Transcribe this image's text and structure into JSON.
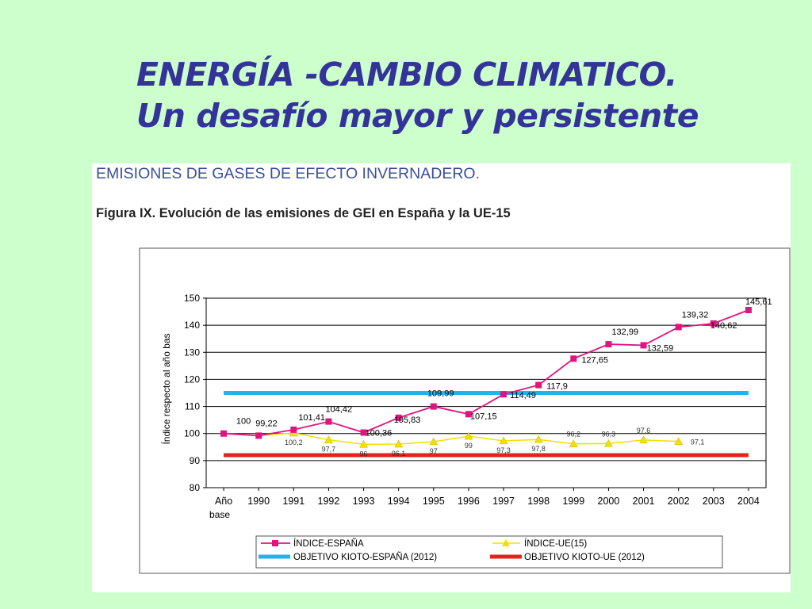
{
  "slide": {
    "title_line1": "ENERGÍA -CAMBIO CLIMATICO.",
    "title_line2": "Un desafío mayor y persistente"
  },
  "figure": {
    "heading": "EMISIONES DE GASES DE EFECTO INVERNADERO.",
    "caption": "Figura IX. Evolución de las emisiones de GEI en España y la UE-15"
  },
  "chart_data": {
    "type": "line",
    "title": "",
    "ylabel": "Índice respecto al año bas",
    "xlabel": "",
    "ylim": [
      80,
      150
    ],
    "yticks": [
      80,
      90,
      100,
      110,
      120,
      130,
      140,
      150
    ],
    "grid": true,
    "legend_position": "bottom",
    "categories": [
      [
        "Año",
        "base"
      ],
      "1990",
      "1991",
      "1992",
      "1993",
      "1994",
      "1995",
      "1996",
      "1997",
      "1998",
      "1999",
      "2000",
      "2001",
      "2002",
      "2003",
      "2004"
    ],
    "series": [
      {
        "name": "ÍNDICE-ESPAÑA",
        "color": "#e0147f",
        "marker": "square",
        "values": [
          100,
          99.22,
          101.41,
          104.42,
          100.36,
          105.83,
          109.99,
          107.15,
          114.49,
          117.9,
          127.65,
          132.99,
          132.59,
          139.32,
          140.62,
          145.61
        ],
        "labels": [
          "100",
          "99,22",
          "101,41",
          "104,42",
          "100,36",
          "105,83",
          "109,99",
          "107,15",
          "114,49",
          "117,9",
          "127,65",
          "132,99",
          "132,59",
          "139,32",
          "140,62",
          "145,61"
        ]
      },
      {
        "name": "ÍNDICE-UE(15)",
        "color": "#f2e000",
        "marker": "triangle",
        "values": [
          null,
          99.22,
          100.2,
          97.7,
          96,
          96.1,
          97,
          99,
          97.3,
          97.8,
          96.2,
          96.3,
          97.6,
          97.1,
          null,
          null
        ],
        "labels": [
          "",
          "",
          "100,2",
          "97,7",
          "96",
          "96,1",
          "97",
          "99",
          "97,3",
          "97,8",
          "96,2",
          "96,3",
          "97,6",
          "97,1",
          "",
          ""
        ]
      },
      {
        "name": "OBJETIVO KIOTO-ESPAÑA (2012)",
        "color": "#1eb6e8",
        "constant": 115
      },
      {
        "name": "OBJETIVO KIOTO-UE (2012)",
        "color": "#e8211e",
        "constant": 92
      }
    ]
  }
}
